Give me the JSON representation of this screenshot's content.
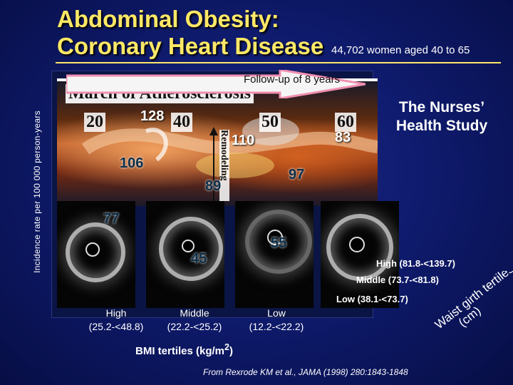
{
  "title": {
    "line1": "Abdominal Obesity:",
    "line2": "Coronary Heart Disease"
  },
  "subtitle": "44,702 women aged 40 to 65",
  "y_axis_label": "Incidence rate per 100 000 person-years",
  "followup": "Follow-up of 8 years",
  "image_overlay": {
    "march": "March of Atherosclerosis",
    "ages": [
      "20",
      "40",
      "50",
      "60"
    ],
    "remodeling": "Remodeling"
  },
  "study_name": {
    "line1": "The Nurses’",
    "line2": "Health Study"
  },
  "chart_data": {
    "type": "bar",
    "categories_bmi": [
      "High\n(25.2-<48.8)",
      "Middle\n(22.2-<25.2)",
      "Low\n(12.2-<22.2)"
    ],
    "categories_waist": [
      "High (81.8-<139.7)",
      "Middle (73.7-<81.8)",
      "Low (38.1-<73.7)"
    ],
    "xlabel": "BMI tertiles (kg/m2)",
    "zlabel": "Waist girth tertiles (cm)",
    "values": {
      "waist_high": [
        128,
        110,
        83
      ],
      "waist_middle": [
        106,
        89,
        97
      ],
      "waist_low": [
        77,
        45,
        55
      ]
    }
  },
  "bmi_labels": [
    {
      "line1": "High",
      "line2": "(25.2-<48.8)"
    },
    {
      "line1": "Middle",
      "line2": "(22.2-<25.2)"
    },
    {
      "line1": "Low",
      "line2": "(12.2-<22.2)"
    }
  ],
  "bmi_axis": {
    "main": "BMI tertiles (kg/m",
    "sup": "2",
    "end": ")"
  },
  "waist_labels": [
    "High (81.8-<139.7)",
    "Middle (73.7-<81.8)",
    "Low (38.1-<73.7)"
  ],
  "waist_axis": {
    "line1": "Waist girth tertiles",
    "line2": "(cm)"
  },
  "value_labels": {
    "v128": "128",
    "v110": "110",
    "v83": "83",
    "v106": "106",
    "v89": "89",
    "v97": "97",
    "v77": "77",
    "v45": "45",
    "v55": "55"
  },
  "source": "From Rexrode KM et al., JAMA (1998) 280:1843-1848",
  "colors": {
    "title": "#ffe866",
    "background": "#0f1b6e",
    "arrow": "#f08fb0"
  }
}
